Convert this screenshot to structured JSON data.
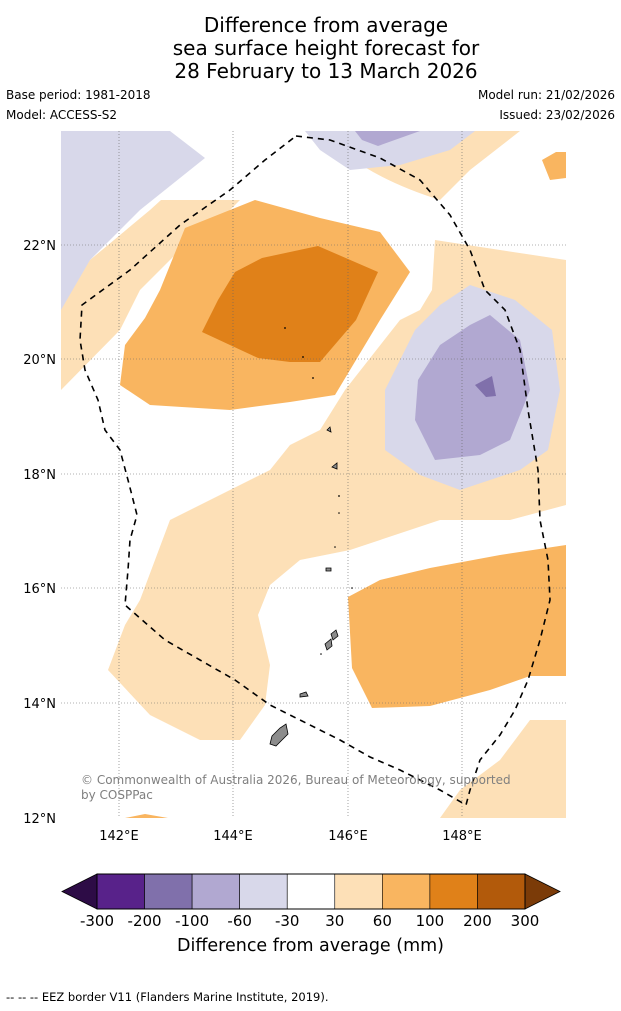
{
  "title": {
    "line1": "Difference from average",
    "line2": "sea surface height forecast for",
    "line3": "28 February to 13 March 2026"
  },
  "meta": {
    "base_period": "Base period: 1981-2018",
    "model": "Model: ACCESS-S2",
    "model_run": "Model run: 21/02/2026",
    "issued": "Issued: 23/02/2026"
  },
  "map": {
    "lat_labels": [
      "22°N",
      "20°N",
      "18°N",
      "16°N",
      "14°N",
      "12°N"
    ],
    "lon_labels": [
      "142°E",
      "144°E",
      "146°E",
      "148°E"
    ],
    "copyright": "© Commonwealth of Australia 2026, Bureau of Meteorology, supported by COSPPac",
    "copyright_line1": "© Commonwealth of Australia 2026, Bureau of Meteorology, supported",
    "copyright_line2": "by COSPPac"
  },
  "colorbar": {
    "labels": [
      "-300",
      "-200",
      "-100",
      "-60",
      "-30",
      "30",
      "60",
      "100",
      "200",
      "300"
    ],
    "colors": {
      "below_min": "#2d0c46",
      "c1": "#58228a",
      "c2": "#8070ab",
      "c3": "#b1a8d1",
      "c4": "#d8d8ea",
      "c5": "#ffffff",
      "c6": "#fde0b7",
      "c7": "#f9b560",
      "c8": "#e08119",
      "c9": "#b25a0b",
      "above_max": "#7b3b08"
    },
    "title": "Difference from average (mm)"
  },
  "footnote": "-- -- -- EEZ border V11 (Flanders Marine Institute, 2019)."
}
